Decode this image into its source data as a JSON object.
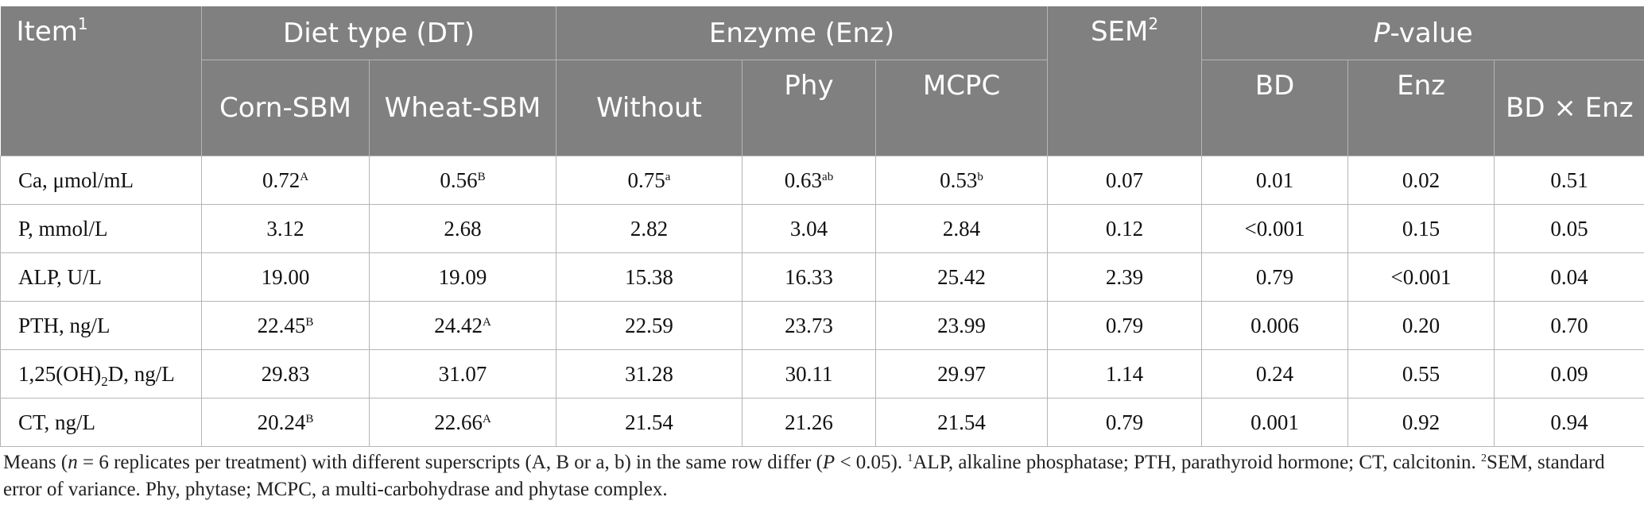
{
  "header": {
    "item_label": "Item",
    "item_sup": "1",
    "diet_type": "Diet type (DT)",
    "enzyme": "Enzyme (Enz)",
    "sem_label": "SEM",
    "sem_sup": "2",
    "pvalue_italic": "P",
    "pvalue_rest": "-value",
    "sub": [
      "Corn-SBM",
      "Wheat-SBM",
      "Without",
      "Phy",
      "MCPC",
      "BD",
      "Enz",
      "BD × Enz"
    ]
  },
  "rows": [
    {
      "item": "Ca, μmol/mL",
      "item_sub": "",
      "item_tail": "",
      "cells": [
        [
          "0.72",
          "A"
        ],
        [
          "0.56",
          "B"
        ],
        [
          "0.75",
          "a"
        ],
        [
          "0.63",
          "ab"
        ],
        [
          "0.53",
          "b"
        ],
        [
          "0.07",
          ""
        ],
        [
          "0.01",
          ""
        ],
        [
          "0.02",
          ""
        ],
        [
          "0.51",
          ""
        ]
      ]
    },
    {
      "item": "P, mmol/L",
      "item_sub": "",
      "item_tail": "",
      "cells": [
        [
          "3.12",
          ""
        ],
        [
          "2.68",
          ""
        ],
        [
          "2.82",
          ""
        ],
        [
          "3.04",
          ""
        ],
        [
          "2.84",
          ""
        ],
        [
          "0.12",
          ""
        ],
        [
          "<0.001",
          ""
        ],
        [
          "0.15",
          ""
        ],
        [
          "0.05",
          ""
        ]
      ]
    },
    {
      "item": "ALP, U/L",
      "item_sub": "",
      "item_tail": "",
      "cells": [
        [
          "19.00",
          ""
        ],
        [
          "19.09",
          ""
        ],
        [
          "15.38",
          ""
        ],
        [
          "16.33",
          ""
        ],
        [
          "25.42",
          ""
        ],
        [
          "2.39",
          ""
        ],
        [
          "0.79",
          ""
        ],
        [
          "<0.001",
          ""
        ],
        [
          "0.04",
          ""
        ]
      ]
    },
    {
      "item": "PTH, ng/L",
      "item_sub": "",
      "item_tail": "",
      "cells": [
        [
          "22.45",
          "B"
        ],
        [
          "24.42",
          "A"
        ],
        [
          "22.59",
          ""
        ],
        [
          "23.73",
          ""
        ],
        [
          "23.99",
          ""
        ],
        [
          "0.79",
          ""
        ],
        [
          "0.006",
          ""
        ],
        [
          "0.20",
          ""
        ],
        [
          "0.70",
          ""
        ]
      ]
    },
    {
      "item": "1,25(OH)",
      "item_sub": "2",
      "item_tail": "D, ng/L",
      "cells": [
        [
          "29.83",
          ""
        ],
        [
          "31.07",
          ""
        ],
        [
          "31.28",
          ""
        ],
        [
          "30.11",
          ""
        ],
        [
          "29.97",
          ""
        ],
        [
          "1.14",
          ""
        ],
        [
          "0.24",
          ""
        ],
        [
          "0.55",
          ""
        ],
        [
          "0.09",
          ""
        ]
      ]
    },
    {
      "item": "CT, ng/L",
      "item_sub": "",
      "item_tail": "",
      "cells": [
        [
          "20.24",
          "B"
        ],
        [
          "22.66",
          "A"
        ],
        [
          "21.54",
          ""
        ],
        [
          "21.26",
          ""
        ],
        [
          "21.54",
          ""
        ],
        [
          "0.79",
          ""
        ],
        [
          "0.001",
          ""
        ],
        [
          "0.92",
          ""
        ],
        [
          "0.94",
          ""
        ]
      ]
    }
  ],
  "footnote": {
    "t1": "Means (",
    "n_italic": "n",
    "t2": " = 6 replicates per treatment) with different superscripts (A, B or a, b) in the same row differ (",
    "p_italic": "P",
    "t3": " < 0.05). ",
    "s1": "1",
    "t4": "ALP, alkaline phosphatase; PTH, parathyroid hormone; CT, calcitonin. ",
    "s2": "2",
    "t5": "SEM, standard error of variance. Phy, phytase; MCPC, a multi-carbohydrase and phytase complex."
  }
}
